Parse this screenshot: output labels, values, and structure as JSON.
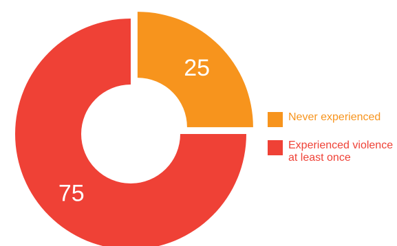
{
  "chart_data": {
    "type": "pie",
    "variant": "donut",
    "title": "",
    "categories": [
      "Never experienced",
      "Experienced violence\nat least once"
    ],
    "values": [
      25,
      75
    ],
    "labels": [
      "25",
      "75"
    ],
    "colors": [
      "#f7941d",
      "#ef4136"
    ],
    "legend_text_colors": [
      "#f7941d",
      "#ef4136"
    ],
    "legend_position": "right",
    "exploded_slice": "Never experienced"
  }
}
